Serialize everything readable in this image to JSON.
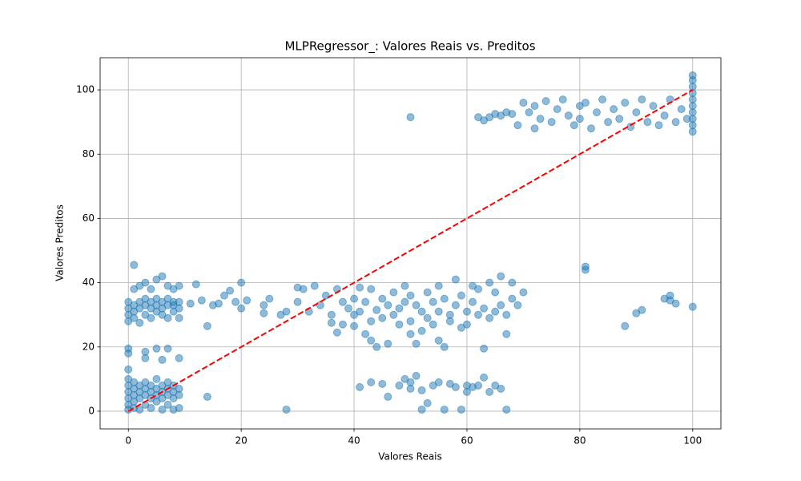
{
  "chart_data": {
    "type": "scatter",
    "title": "MLPRegressor_: Valores Reais vs. Preditos",
    "x_label": "Valores Reais",
    "y_label": "Valores Preditos",
    "xlim": [
      -5,
      105
    ],
    "ylim": [
      -5.5,
      110
    ],
    "xticks": [
      0,
      20,
      40,
      60,
      80,
      100
    ],
    "yticks": [
      0,
      20,
      40,
      60,
      80,
      100
    ],
    "grid": true,
    "series": [
      {
        "kind": "points",
        "color": "#1f77b4",
        "alpha": 0.5,
        "x": [
          0,
          0,
          0,
          0,
          0,
          0,
          1,
          1,
          1,
          1,
          1,
          2,
          2,
          2,
          2,
          3,
          3,
          3,
          3,
          4,
          4,
          4,
          4,
          5,
          5,
          5,
          5,
          6,
          6,
          6,
          6,
          7,
          7,
          7,
          7,
          8,
          8,
          8,
          8,
          9,
          9,
          9,
          0,
          0,
          0,
          0,
          1,
          1,
          1,
          1,
          2,
          2,
          2,
          2,
          3,
          3,
          3,
          3,
          4,
          4,
          4,
          4,
          5,
          5,
          5,
          5,
          6,
          6,
          6,
          6,
          7,
          7,
          7,
          7,
          8,
          8,
          8,
          8,
          9,
          9,
          9,
          9,
          0,
          0,
          0,
          1,
          3,
          3,
          5,
          6,
          7,
          9,
          14,
          14,
          11,
          12,
          13,
          15,
          16,
          17,
          18,
          19,
          20,
          20,
          21,
          24,
          24,
          25,
          27,
          28,
          30,
          30,
          31,
          32,
          33,
          34,
          35,
          36,
          36,
          37,
          37,
          38,
          38,
          39,
          40,
          40,
          40,
          41,
          41,
          42,
          42,
          43,
          43,
          43,
          44,
          44,
          45,
          45,
          46,
          46,
          47,
          47,
          48,
          48,
          49,
          49,
          50,
          50,
          50,
          51,
          51,
          52,
          52,
          53,
          53,
          54,
          54,
          55,
          55,
          55,
          56,
          56,
          57,
          57,
          58,
          58,
          59,
          59,
          60,
          60,
          61,
          61,
          62,
          62,
          63,
          63,
          64,
          64,
          65,
          65,
          66,
          66,
          67,
          67,
          68,
          68,
          69,
          70,
          28,
          41,
          43,
          45,
          46,
          48,
          49,
          50,
          50,
          51,
          52,
          52,
          53,
          54,
          55,
          56,
          57,
          58,
          59,
          60,
          60,
          61,
          62,
          63,
          64,
          65,
          66,
          67,
          50,
          62,
          63,
          64,
          65,
          66,
          67,
          68,
          69,
          70,
          71,
          72,
          72,
          73,
          74,
          75,
          76,
          77,
          78,
          79,
          80,
          80,
          81,
          82,
          83,
          84,
          85,
          86,
          87,
          88,
          89,
          90,
          91,
          92,
          93,
          94,
          95,
          96,
          97,
          98,
          99,
          100,
          100,
          100,
          100,
          100,
          100,
          100,
          100,
          100,
          100,
          81,
          81,
          88,
          90,
          91,
          95,
          96,
          96,
          97,
          100
        ],
        "values": [
          0.5,
          2,
          4,
          6,
          8,
          10,
          1,
          3,
          5,
          7,
          9,
          0.5,
          4,
          6,
          8,
          2,
          5,
          7,
          9,
          1,
          4,
          6,
          8,
          3,
          5,
          7,
          10,
          0.5,
          4,
          6,
          8,
          2,
          5,
          7,
          9,
          0.5,
          4,
          6,
          8,
          1,
          5,
          7,
          28,
          30,
          32,
          34,
          29,
          31,
          33,
          38,
          27.5,
          32,
          34,
          39,
          30,
          33,
          35,
          40,
          29,
          32,
          34,
          38,
          31,
          33,
          35,
          41,
          30,
          32,
          34,
          42,
          29,
          33,
          35,
          39,
          31,
          33,
          34,
          38,
          29,
          32,
          34,
          39,
          18,
          19.5,
          13,
          45.5,
          18.5,
          16.5,
          19.5,
          16,
          19.5,
          16.5,
          4.5,
          26.5,
          33.5,
          39.5,
          34.5,
          33,
          33.5,
          36,
          37.5,
          34,
          40,
          32,
          34.5,
          33,
          30.5,
          35,
          30,
          31,
          38.5,
          34,
          38,
          31,
          39,
          33,
          36,
          30,
          27.5,
          38,
          24.5,
          27,
          34,
          32,
          30,
          35,
          26.5,
          38.5,
          31,
          24,
          34,
          28,
          38,
          22,
          31.5,
          20,
          35,
          29,
          33,
          21,
          30,
          37,
          32,
          27,
          34,
          39,
          36,
          24,
          28,
          33,
          21,
          31,
          25,
          37,
          29,
          34,
          27,
          39,
          31,
          22,
          35,
          20,
          30,
          28,
          41,
          33,
          26,
          36,
          31,
          27,
          39,
          34,
          30,
          38,
          32,
          19.5,
          40,
          29,
          37,
          31,
          42,
          33,
          30,
          24,
          35,
          40,
          33,
          37,
          0.5,
          7.5,
          9,
          8.5,
          4.5,
          8,
          10,
          7,
          9,
          11,
          0.5,
          6.5,
          2.5,
          8,
          9,
          0.5,
          8.5,
          7.5,
          0.5,
          6,
          8,
          7.5,
          8,
          10.5,
          6,
          8,
          7,
          0.5,
          91.5,
          91.5,
          90.5,
          91.5,
          92.5,
          92,
          93,
          92.5,
          89,
          96,
          93,
          95,
          88,
          91,
          96.5,
          90,
          94,
          97,
          92,
          89,
          95,
          91,
          96,
          88,
          93,
          97,
          90,
          94,
          91,
          96,
          88.5,
          93,
          97,
          90,
          95,
          89,
          92,
          97,
          90,
          94,
          91,
          87,
          89,
          91,
          93,
          95,
          97,
          99,
          101,
          103,
          104.5,
          44,
          45,
          26.5,
          30.5,
          31.5,
          35,
          36,
          34.5,
          33.5,
          32.5
        ]
      },
      {
        "kind": "line",
        "color": "#ff0000",
        "dashed": true,
        "x": [
          0,
          100
        ],
        "values": [
          0,
          100
        ]
      }
    ]
  }
}
